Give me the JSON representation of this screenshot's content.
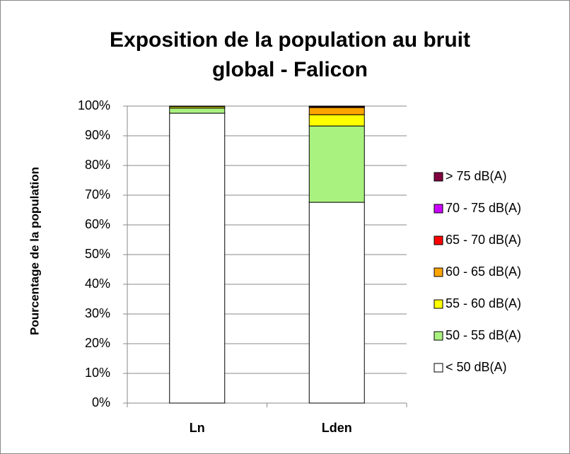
{
  "chart_data": {
    "type": "stacked_bar",
    "title": "Exposition de la population au bruit global - Falicon",
    "y_label": "Pourcentage de la population",
    "categories": [
      "Ln",
      "Lden"
    ],
    "series": [
      {
        "name": "< 50 dB(A)",
        "color": "#ffffff",
        "values": [
          97.6,
          67.6
        ]
      },
      {
        "name": "50 - 55 dB(A)",
        "color": "#aaf27f",
        "values": [
          1.7,
          25.7
        ]
      },
      {
        "name": "55 - 60 dB(A)",
        "color": "#ffff00",
        "values": [
          0.5,
          3.8
        ]
      },
      {
        "name": "60 - 65 dB(A)",
        "color": "#ffa500",
        "values": [
          0.2,
          2.4
        ]
      },
      {
        "name": "65 - 70 dB(A)",
        "color": "#ff0000",
        "values": [
          0,
          0.3
        ]
      },
      {
        "name": "70 - 75 dB(A)",
        "color": "#cc00ff",
        "values": [
          0,
          0.1
        ]
      },
      {
        "name": "> 75 dB(A)",
        "color": "#800040",
        "values": [
          0,
          0.1
        ]
      }
    ],
    "ylim": [
      0,
      100
    ],
    "yticks": [
      {
        "value": 0,
        "label": "0%"
      },
      {
        "value": 10,
        "label": "10%"
      },
      {
        "value": 20,
        "label": "20%"
      },
      {
        "value": 30,
        "label": "30%"
      },
      {
        "value": 40,
        "label": "40%"
      },
      {
        "value": 50,
        "label": "50%"
      },
      {
        "value": 60,
        "label": "60%"
      },
      {
        "value": 70,
        "label": "70%"
      },
      {
        "value": 80,
        "label": "80%"
      },
      {
        "value": 90,
        "label": "90%"
      },
      {
        "value": 100,
        "label": "100%"
      }
    ],
    "grid": true,
    "legend": "right"
  }
}
